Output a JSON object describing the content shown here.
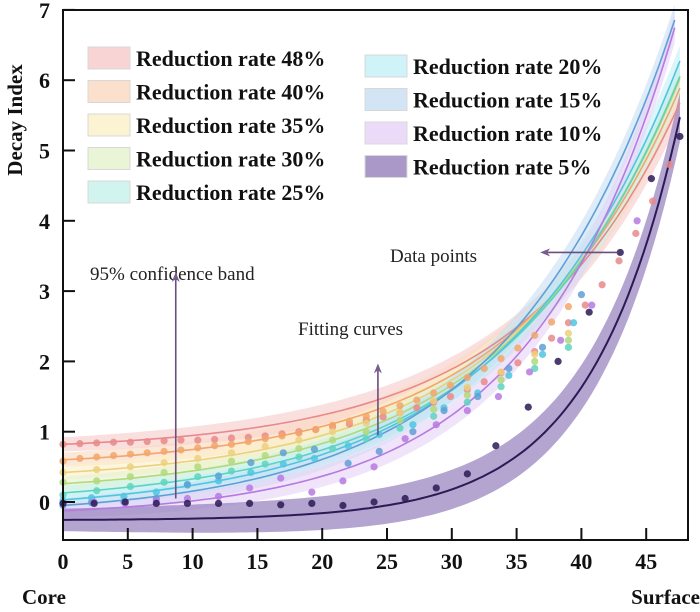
{
  "chart_data": {
    "type": "scatter",
    "title": "",
    "xlabel": "",
    "ylabel": "Decay Index",
    "x_end_labels": {
      "left": "Core",
      "right": "Surface"
    },
    "xlim": [
      0,
      48.3
    ],
    "ylim": [
      -0.55,
      7
    ],
    "xticks": [
      0,
      5,
      10,
      15,
      20,
      25,
      30,
      35,
      40,
      45
    ],
    "yticks": [
      0,
      1,
      2,
      3,
      4,
      5,
      6,
      7
    ],
    "grid": false,
    "legend_position": "top-left (two columns)",
    "annotations": [
      {
        "text": "95% confidence band",
        "arrow": "up",
        "x": 8.7,
        "y_from": 0.05,
        "y_to": 3.2
      },
      {
        "text": "Fitting curves",
        "arrow": "up",
        "x": 24.3,
        "y_from": 0.95,
        "y_to": 1.9
      },
      {
        "text": "Data points",
        "arrow": "left",
        "x_from": 42.8,
        "x_to": 37.2,
        "y": 3.55
      }
    ],
    "series": [
      {
        "name": "Reduction rate 48%",
        "color": "#e88a8a",
        "band": "#f6c9c9",
        "fit": {
          "a": 0.72,
          "b": 0.1,
          "c": 0.082
        },
        "x": [
          0,
          1.3,
          2.6,
          3.9,
          5.2,
          6.5,
          7.8,
          9.1,
          10.4,
          11.7,
          13,
          14.3,
          15.6,
          16.9,
          18.2,
          19.5,
          20.8,
          22.1,
          23.4,
          24.7,
          26,
          27.3,
          28.6,
          29.9,
          31.2,
          32.5,
          33.8,
          35.1,
          36.4,
          37.7,
          39,
          40.3,
          41.6,
          42.9,
          44.2,
          45.5,
          46.8
        ],
        "y": [
          0.82,
          0.83,
          0.84,
          0.85,
          0.85,
          0.86,
          0.87,
          0.88,
          0.88,
          0.89,
          0.91,
          0.92,
          0.94,
          0.97,
          1.0,
          1.03,
          1.07,
          1.11,
          1.16,
          1.21,
          1.27,
          1.34,
          1.42,
          1.5,
          1.6,
          1.71,
          1.84,
          1.98,
          2.14,
          2.33,
          2.55,
          2.8,
          3.09,
          3.43,
          3.82,
          4.28,
          4.8
        ]
      },
      {
        "name": "Reduction rate 40%",
        "color": "#f2a66a",
        "band": "#fad8c0",
        "fit": {
          "a": 0.48,
          "b": 0.12,
          "c": 0.08
        },
        "x": [
          0,
          1.3,
          2.6,
          3.9,
          5.2,
          6.5,
          7.8,
          9.1,
          10.4,
          11.7,
          13,
          14.3,
          15.6,
          16.9,
          18.2,
          19.5,
          20.8,
          22.1,
          23.4,
          24.7,
          26,
          27.3,
          28.6,
          29.9,
          31.2,
          32.5,
          33.8,
          35.1,
          36.4,
          37.7,
          39
        ],
        "y": [
          0.58,
          0.62,
          0.64,
          0.66,
          0.68,
          0.7,
          0.72,
          0.74,
          0.77,
          0.8,
          0.82,
          0.86,
          0.9,
          0.94,
          0.98,
          1.03,
          1.09,
          1.15,
          1.22,
          1.29,
          1.37,
          1.45,
          1.55,
          1.66,
          1.77,
          1.9,
          2.04,
          2.19,
          2.37,
          2.56,
          2.78
        ]
      },
      {
        "name": "Reduction rate 35%",
        "color": "#ecd07c",
        "band": "#fbf0c8",
        "fit": {
          "a": 0.28,
          "b": 0.14,
          "c": 0.078
        },
        "x": [
          0,
          2.6,
          5.2,
          7.8,
          10.4,
          13,
          15.6,
          18.2,
          20.8,
          23.4,
          26,
          28.6,
          31.2,
          33.8,
          36.4,
          39
        ],
        "y": [
          0.42,
          0.46,
          0.5,
          0.56,
          0.62,
          0.7,
          0.79,
          0.88,
          1.0,
          1.12,
          1.27,
          1.44,
          1.63,
          1.85,
          2.1,
          2.4
        ]
      },
      {
        "name": "Reduction rate 30%",
        "color": "#b2d87a",
        "band": "#e4f2cc",
        "fit": {
          "a": 0.1,
          "b": 0.16,
          "c": 0.076
        },
        "x": [
          0,
          2.6,
          5.2,
          7.8,
          10.4,
          13,
          15.6,
          18.2,
          20.8,
          23.4,
          26,
          28.6,
          31.2,
          33.8,
          36.4,
          39
        ],
        "y": [
          0.28,
          0.3,
          0.36,
          0.42,
          0.5,
          0.58,
          0.66,
          0.76,
          0.88,
          1.0,
          1.16,
          1.32,
          1.52,
          1.74,
          2.0,
          2.3
        ]
      },
      {
        "name": "Reduction rate 25%",
        "color": "#5ed3c0",
        "band": "#c6f1ea",
        "fit": {
          "a": -0.05,
          "b": 0.18,
          "c": 0.074
        },
        "x": [
          0,
          2.6,
          5.2,
          7.8,
          10.4,
          13,
          15.6,
          18.2,
          20.8,
          23.4,
          26,
          28.6,
          31.2,
          33.8,
          36.4,
          39
        ],
        "y": [
          0.1,
          0.16,
          0.22,
          0.28,
          0.36,
          0.44,
          0.54,
          0.64,
          0.76,
          0.9,
          1.05,
          1.22,
          1.42,
          1.64,
          1.9,
          2.2
        ]
      },
      {
        "name": "Reduction rate 20%",
        "color": "#4fc6e0",
        "band": "#c4eff8",
        "fit": {
          "a": -0.16,
          "b": 0.19,
          "c": 0.074
        },
        "x": [
          0,
          2.2,
          4.7,
          7.2,
          9.6,
          12,
          14.5,
          17,
          19.4,
          22,
          24.4,
          27,
          29.4,
          32,
          34.4,
          37,
          39.4
        ],
        "y": [
          0.02,
          0.06,
          0.08,
          0.14,
          0.24,
          0.3,
          0.42,
          0.54,
          0.62,
          0.8,
          0.96,
          1.1,
          1.34,
          1.55,
          1.8,
          2.1,
          2.55
        ]
      },
      {
        "name": "Reduction rate 15%",
        "color": "#5f9fd6",
        "band": "#c8ddf3",
        "fit": {
          "a": -0.22,
          "b": 0.17,
          "c": 0.079
        },
        "x": [
          0,
          2.2,
          4.7,
          7.2,
          9.6,
          12,
          14.5,
          17,
          19.4,
          22,
          24.4,
          27,
          29.4,
          32,
          34.4,
          37,
          40
        ],
        "y": [
          -0.05,
          -0.01,
          0.0,
          0.05,
          0.25,
          0.37,
          0.56,
          0.7,
          0.75,
          0.55,
          0.72,
          1.0,
          1.3,
          1.5,
          1.9,
          2.2,
          2.95
        ]
      },
      {
        "name": "Reduction rate 10%",
        "color": "#b67ae0",
        "band": "#e6d2f6",
        "fit": {
          "a": -0.22,
          "b": 0.095,
          "c": 0.091
        },
        "x": [
          0,
          2.4,
          4.8,
          7.2,
          9.6,
          12,
          14.4,
          16.8,
          19.2,
          21.6,
          24,
          26.4,
          28.8,
          31.2,
          33.6,
          36,
          38.4,
          40.8,
          44.3
        ],
        "y": [
          -0.02,
          0.0,
          -0.02,
          0.02,
          0.05,
          0.08,
          0.2,
          0.34,
          0.14,
          0.3,
          0.5,
          0.9,
          1.1,
          1.3,
          1.5,
          1.85,
          2.3,
          2.8,
          4.0
        ]
      },
      {
        "name": "Reduction rate 5%",
        "color": "#2c1a55",
        "band": "#9b86c0",
        "fit": {
          "a": -0.26,
          "b": 0.0055,
          "c": 0.146
        },
        "x": [
          0,
          2.4,
          4.8,
          7.2,
          9.6,
          12,
          14.4,
          16.8,
          19.2,
          21.6,
          24,
          26.4,
          28.8,
          31.2,
          33.4,
          35.9,
          38.2,
          40.6,
          43,
          45.4,
          47.6
        ],
        "y": [
          -0.02,
          -0.02,
          0.0,
          -0.02,
          -0.02,
          -0.02,
          -0.02,
          -0.04,
          -0.02,
          -0.05,
          0.0,
          0.05,
          0.2,
          0.4,
          0.8,
          1.35,
          2.0,
          2.7,
          3.55,
          4.6,
          5.2
        ]
      }
    ]
  }
}
